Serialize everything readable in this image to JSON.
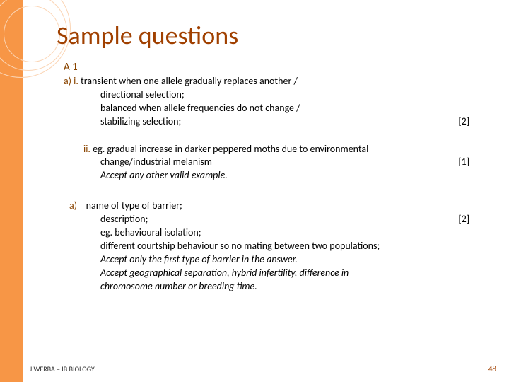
{
  "title": "Sample questions",
  "section_label": "A 1",
  "colors": {
    "accent_bar": "#f79646",
    "title_color": "#a04000",
    "label_color": "#8a4500",
    "circle_color": "#fbd5b5",
    "background": "#ffffff",
    "text": "#000000",
    "page_num_color": "#a04000"
  },
  "typography": {
    "title_fontsize": 36,
    "body_fontsize": 14,
    "footer_fontsize": 10
  },
  "parts": {
    "ai": {
      "prefix_a": "a)",
      "prefix_i": "i.",
      "line1": "transient when one allele gradually replaces another /",
      "line2": "directional selection;",
      "line3": "balanced when allele frequencies do not change /",
      "line4": "stabilizing selection;",
      "marks": "[2]"
    },
    "aii": {
      "prefix_ii": "ii.",
      "line1": "eg. gradual increase in darker peppered moths due to environmental",
      "line2": "change/industrial melanism",
      "line3_italic": "Accept any other valid example.",
      "marks": "[1]"
    },
    "b": {
      "prefix_a": "a)",
      "line1": "name of type of barrier;",
      "line2": "description;",
      "line3": "eg. behavioural isolation;",
      "line4": "different courtship behaviour so no mating between two populations;",
      "line5_italic": "Accept only the first type of barrier in the answer.",
      "line6_italic": "Accept geographical separation, hybrid infertility, difference in",
      "line7_italic": "chromosome number or breeding time.",
      "marks": "[2]"
    }
  },
  "footer": "J WERBA – IB BIOLOGY",
  "page_number": "48"
}
